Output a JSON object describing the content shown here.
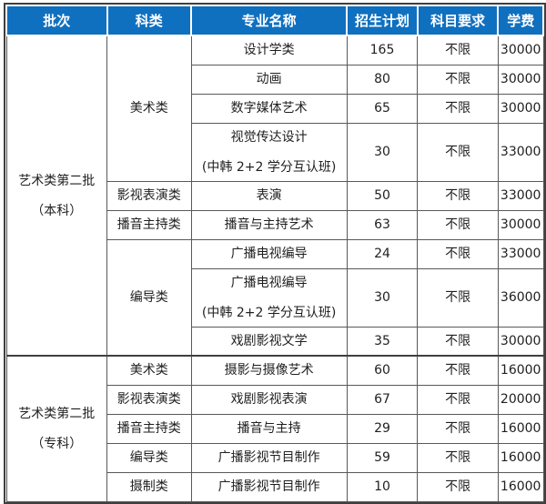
{
  "colors": {
    "header_bg": "#1070c0",
    "header_text": "#ffffff",
    "grid_line": "#595959",
    "outer_border": "#3f3f3f",
    "body_text": "#1f1f1f"
  },
  "table": {
    "columns": [
      {
        "label": "批次"
      },
      {
        "label": "科类"
      },
      {
        "label": "专业名称"
      },
      {
        "label": "招生计划"
      },
      {
        "label": "科目要求"
      },
      {
        "label": "学费"
      }
    ],
    "rows": [
      {
        "cells": [
          {
            "name": "batch-cell",
            "rowspan": 9,
            "lines": [
              "艺术类第二批",
              "（本科）"
            ]
          },
          {
            "name": "category-cell",
            "rowspan": 4,
            "lines": [
              "美术类"
            ]
          },
          {
            "name": "major-cell",
            "lines": [
              "设计学类"
            ]
          },
          {
            "name": "plan-cell",
            "lines": [
              "165"
            ]
          },
          {
            "name": "subject-req-cell",
            "lines": [
              "不限"
            ]
          },
          {
            "name": "tuition-cell",
            "lines": [
              "30000"
            ]
          }
        ]
      },
      {
        "cells": [
          {
            "name": "major-cell",
            "lines": [
              "动画"
            ]
          },
          {
            "name": "plan-cell",
            "lines": [
              "80"
            ]
          },
          {
            "name": "subject-req-cell",
            "lines": [
              "不限"
            ]
          },
          {
            "name": "tuition-cell",
            "lines": [
              "30000"
            ]
          }
        ]
      },
      {
        "cells": [
          {
            "name": "major-cell",
            "lines": [
              "数字媒体艺术"
            ]
          },
          {
            "name": "plan-cell",
            "lines": [
              "65"
            ]
          },
          {
            "name": "subject-req-cell",
            "lines": [
              "不限"
            ]
          },
          {
            "name": "tuition-cell",
            "lines": [
              "30000"
            ]
          }
        ]
      },
      {
        "cells": [
          {
            "name": "major-cell",
            "lines": [
              "视觉传达设计",
              "(中韩 2+2 学分互认班)"
            ]
          },
          {
            "name": "plan-cell",
            "lines": [
              "30"
            ]
          },
          {
            "name": "subject-req-cell",
            "lines": [
              "不限"
            ]
          },
          {
            "name": "tuition-cell",
            "lines": [
              "33000"
            ]
          }
        ]
      },
      {
        "cells": [
          {
            "name": "category-cell",
            "lines": [
              "影视表演类"
            ]
          },
          {
            "name": "major-cell",
            "lines": [
              "表演"
            ]
          },
          {
            "name": "plan-cell",
            "lines": [
              "50"
            ]
          },
          {
            "name": "subject-req-cell",
            "lines": [
              "不限"
            ]
          },
          {
            "name": "tuition-cell",
            "lines": [
              "33000"
            ]
          }
        ]
      },
      {
        "cells": [
          {
            "name": "category-cell",
            "lines": [
              "播音主持类"
            ]
          },
          {
            "name": "major-cell",
            "lines": [
              "播音与主持艺术"
            ]
          },
          {
            "name": "plan-cell",
            "lines": [
              "63"
            ]
          },
          {
            "name": "subject-req-cell",
            "lines": [
              "不限"
            ]
          },
          {
            "name": "tuition-cell",
            "lines": [
              "30000"
            ]
          }
        ]
      },
      {
        "cells": [
          {
            "name": "category-cell",
            "rowspan": 3,
            "lines": [
              "编导类"
            ]
          },
          {
            "name": "major-cell",
            "lines": [
              "广播电视编导"
            ]
          },
          {
            "name": "plan-cell",
            "lines": [
              "24"
            ]
          },
          {
            "name": "subject-req-cell",
            "lines": [
              "不限"
            ]
          },
          {
            "name": "tuition-cell",
            "lines": [
              "33000"
            ]
          }
        ]
      },
      {
        "cells": [
          {
            "name": "major-cell",
            "lines": [
              "广播电视编导",
              "(中韩 2+2 学分互认班)"
            ]
          },
          {
            "name": "plan-cell",
            "lines": [
              "30"
            ]
          },
          {
            "name": "subject-req-cell",
            "lines": [
              "不限"
            ]
          },
          {
            "name": "tuition-cell",
            "lines": [
              "36000"
            ]
          }
        ]
      },
      {
        "cells": [
          {
            "name": "major-cell",
            "lines": [
              "戏剧影视文学"
            ]
          },
          {
            "name": "plan-cell",
            "lines": [
              "35"
            ]
          },
          {
            "name": "subject-req-cell",
            "lines": [
              "不限"
            ]
          },
          {
            "name": "tuition-cell",
            "lines": [
              "30000"
            ]
          }
        ]
      },
      {
        "cells": [
          {
            "name": "batch-cell",
            "rowspan": 5,
            "lines": [
              "艺术类第二批",
              "（专科）"
            ]
          },
          {
            "name": "category-cell",
            "lines": [
              "美术类"
            ]
          },
          {
            "name": "major-cell",
            "lines": [
              "摄影与摄像艺术"
            ]
          },
          {
            "name": "plan-cell",
            "lines": [
              "60"
            ]
          },
          {
            "name": "subject-req-cell",
            "lines": [
              "不限"
            ]
          },
          {
            "name": "tuition-cell",
            "lines": [
              "16000"
            ]
          }
        ]
      },
      {
        "cells": [
          {
            "name": "category-cell",
            "lines": [
              "影视表演类"
            ]
          },
          {
            "name": "major-cell",
            "lines": [
              "戏剧影视表演"
            ]
          },
          {
            "name": "plan-cell",
            "lines": [
              "67"
            ]
          },
          {
            "name": "subject-req-cell",
            "lines": [
              "不限"
            ]
          },
          {
            "name": "tuition-cell",
            "lines": [
              "20000"
            ]
          }
        ]
      },
      {
        "cells": [
          {
            "name": "category-cell",
            "lines": [
              "播音主持类"
            ]
          },
          {
            "name": "major-cell",
            "lines": [
              "播音与主持"
            ]
          },
          {
            "name": "plan-cell",
            "lines": [
              "29"
            ]
          },
          {
            "name": "subject-req-cell",
            "lines": [
              "不限"
            ]
          },
          {
            "name": "tuition-cell",
            "lines": [
              "16000"
            ]
          }
        ]
      },
      {
        "cells": [
          {
            "name": "category-cell",
            "lines": [
              "编导类"
            ]
          },
          {
            "name": "major-cell",
            "lines": [
              "广播影视节目制作"
            ]
          },
          {
            "name": "plan-cell",
            "lines": [
              "59"
            ]
          },
          {
            "name": "subject-req-cell",
            "lines": [
              "不限"
            ]
          },
          {
            "name": "tuition-cell",
            "lines": [
              "16000"
            ]
          }
        ]
      },
      {
        "cells": [
          {
            "name": "category-cell",
            "lines": [
              "摄制类"
            ]
          },
          {
            "name": "major-cell",
            "lines": [
              "广播影视节目制作"
            ]
          },
          {
            "name": "plan-cell",
            "lines": [
              "10"
            ]
          },
          {
            "name": "subject-req-cell",
            "lines": [
              "不限"
            ]
          },
          {
            "name": "tuition-cell",
            "lines": [
              "16000"
            ]
          }
        ]
      }
    ]
  }
}
